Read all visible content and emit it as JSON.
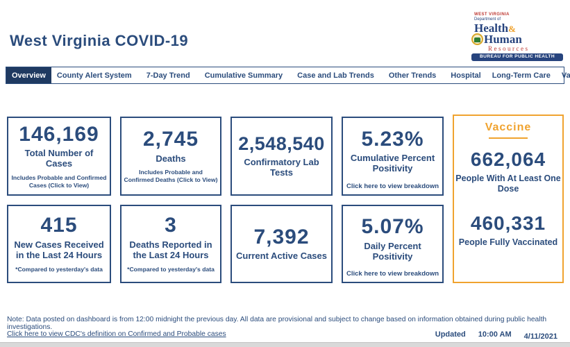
{
  "header": {
    "title": "West Virginia COVID-19",
    "logo": {
      "state": "WEST VIRGINIA",
      "dept": "Department of",
      "word1": "Health",
      "amp": "&",
      "word2": "Human",
      "word3": "Resources",
      "banner": "BUREAU FOR PUBLIC HEALTH"
    }
  },
  "nav": {
    "tabs": [
      {
        "label": "Overview",
        "active": true
      },
      {
        "label": "County Alert System",
        "active": false
      },
      {
        "label": "7-Day Trend",
        "active": false
      },
      {
        "label": "Cumulative Summary",
        "active": false
      },
      {
        "label": "Case and Lab Trends",
        "active": false
      },
      {
        "label": "Other Trends",
        "active": false
      },
      {
        "label": "Hospital",
        "active": false
      },
      {
        "label": "Long-Term Care",
        "active": false
      },
      {
        "label": "Vaccine Summary",
        "active": false
      }
    ]
  },
  "cards": [
    {
      "value": "146,169",
      "label": "Total Number of Cases",
      "sub": "Includes Probable and Confirmed Cases (Click to View)"
    },
    {
      "value": "2,745",
      "label": "Deaths",
      "sub": "Includes Probable and Confirmed Deaths (Click to View)"
    },
    {
      "value": "2,548,540",
      "label": "Confirmatory Lab Tests"
    },
    {
      "value": "5.23%",
      "label": "Cumulative Percent Positivity",
      "link": "Click here to view breakdown"
    },
    {
      "value": "415",
      "label": "New Cases Received in the Last 24 Hours",
      "sub": "*Compared to yesterday's data"
    },
    {
      "value": "3",
      "label": "Deaths Reported in the Last 24 Hours",
      "sub": "*Compared to yesterday's data"
    },
    {
      "value": "7,392",
      "label": "Current Active Cases"
    },
    {
      "value": "5.07%",
      "label": "Daily Percent Positivity",
      "link": "Click here to view breakdown"
    }
  ],
  "vaccine": {
    "title": "Vaccine",
    "stats": [
      {
        "value": "662,064",
        "label": "People With At Least One Dose"
      },
      {
        "value": "460,331",
        "label": "People Fully Vaccinated"
      }
    ]
  },
  "footer": {
    "note": "Note: Data posted on dashboard is from 12:00 midnight the previous day. All data are provisional and subject to change based on information obtained during public health investigations.",
    "cdc_link": "Click here to view CDC's definition on Confirmed and Probable cases",
    "updated_label": "Updated",
    "updated_time": "10:00 AM",
    "updated_date": "4/11/2021"
  },
  "colors": {
    "accent_navy": "#2B4C7C",
    "active_tab_navy": "#1F3A61",
    "accent_gold": "#F0A32F",
    "logo_red": "#BE3A34"
  }
}
